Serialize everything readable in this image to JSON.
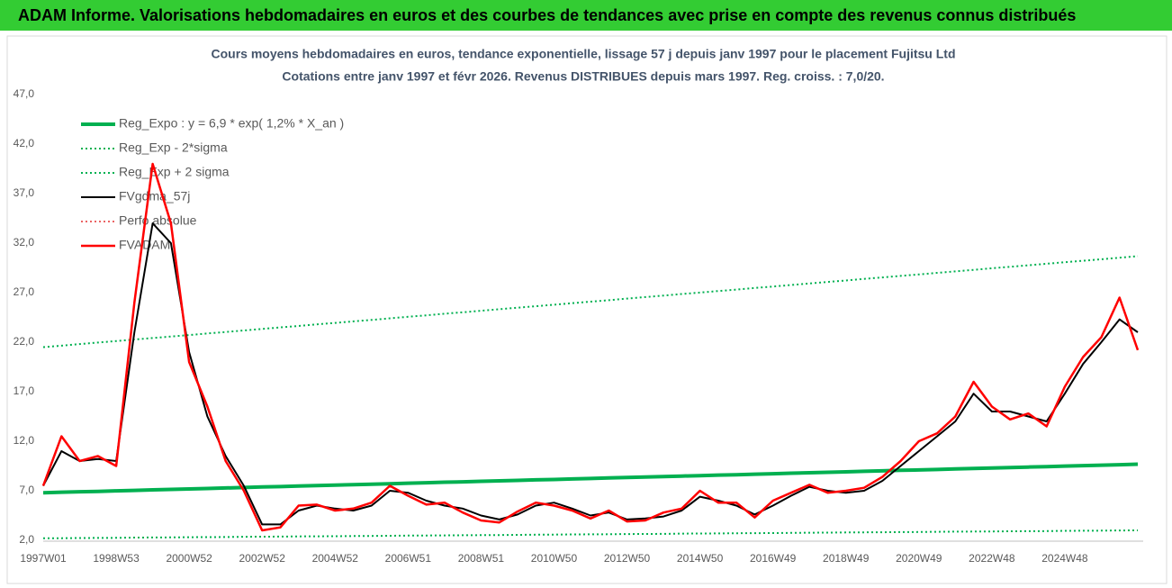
{
  "header": {
    "title": "ADAM Informe. Valorisations hebdomadaires en euros et des courbes de tendances avec prise en compte des revenus connus distribués"
  },
  "chart_data": {
    "type": "line",
    "title": "Cours moyens hebdomadaires en euros, tendance exponentielle, lissage 57 j depuis janv 1997 pour le placement Fujitsu Ltd",
    "subtitle": "Cotations entre janv 1997 et févr 2026. Revenus DISTRIBUES depuis mars 1997. Reg. croiss. : 7,0/20.",
    "categories": [
      "1997W01",
      null,
      null,
      null,
      "1998W53",
      null,
      null,
      null,
      "2000W52",
      null,
      null,
      null,
      "2002W52",
      null,
      null,
      null,
      "2004W52",
      null,
      null,
      null,
      "2006W51",
      null,
      null,
      null,
      "2008W51",
      null,
      null,
      null,
      "2010W50",
      null,
      null,
      null,
      "2012W50",
      null,
      null,
      null,
      "2014W50",
      null,
      null,
      null,
      "2016W49",
      null,
      null,
      null,
      "2018W49",
      null,
      null,
      null,
      "2020W49",
      null,
      null,
      null,
      "2022W48",
      null,
      null,
      null,
      "2024W48",
      null,
      null,
      null,
      null
    ],
    "ylim": [
      2,
      47
    ],
    "yticks": [
      {
        "value": 2,
        "label": "2,0"
      },
      {
        "value": 7,
        "label": "7,0"
      },
      {
        "value": 12,
        "label": "12,0"
      },
      {
        "value": 17,
        "label": "17,0"
      },
      {
        "value": 22,
        "label": "22,0"
      },
      {
        "value": 27,
        "label": "27,0"
      },
      {
        "value": 32,
        "label": "32,0"
      },
      {
        "value": 37,
        "label": "37,0"
      },
      {
        "value": 42,
        "label": "42,0"
      },
      {
        "value": 47,
        "label": "47,0"
      }
    ],
    "grid": false,
    "legend": "top-left",
    "series": [
      {
        "name": "Reg_Expo : y = 6,9 * exp( 1,2% *  X_an )",
        "color": "#00b050",
        "style": "solid",
        "width": 4,
        "values": [
          6.8,
          6.85,
          6.9,
          6.94,
          6.99,
          7.04,
          7.09,
          7.14,
          7.18,
          7.23,
          7.28,
          7.33,
          7.38,
          7.42,
          7.47,
          7.52,
          7.57,
          7.62,
          7.66,
          7.71,
          7.76,
          7.81,
          7.86,
          7.9,
          7.95,
          8.0,
          8.05,
          8.1,
          8.14,
          8.19,
          8.24,
          8.29,
          8.34,
          8.38,
          8.43,
          8.48,
          8.53,
          8.58,
          8.62,
          8.67,
          8.72,
          8.77,
          8.82,
          8.86,
          8.91,
          8.96,
          9.01,
          9.06,
          9.1,
          9.15,
          9.2,
          9.25,
          9.3,
          9.34,
          9.39,
          9.44,
          9.49,
          9.54,
          9.58,
          9.63,
          9.68
        ]
      },
      {
        "name": "Reg_Exp - 2*sigma",
        "color": "#00b050",
        "style": "dotted",
        "width": 2,
        "values": [
          2.2,
          2.21,
          2.23,
          2.24,
          2.25,
          2.27,
          2.28,
          2.29,
          2.31,
          2.32,
          2.33,
          2.35,
          2.36,
          2.37,
          2.39,
          2.4,
          2.41,
          2.43,
          2.44,
          2.45,
          2.47,
          2.48,
          2.49,
          2.51,
          2.52,
          2.53,
          2.55,
          2.56,
          2.57,
          2.59,
          2.6,
          2.61,
          2.63,
          2.64,
          2.65,
          2.67,
          2.68,
          2.69,
          2.71,
          2.72,
          2.73,
          2.75,
          2.76,
          2.77,
          2.79,
          2.8,
          2.81,
          2.83,
          2.84,
          2.85,
          2.87,
          2.88,
          2.89,
          2.91,
          2.92,
          2.93,
          2.95,
          2.96,
          2.97,
          2.99,
          3.0
        ]
      },
      {
        "name": "Reg_Exp + 2 sigma",
        "color": "#00b050",
        "style": "dotted",
        "width": 2,
        "values": [
          21.5,
          21.65,
          21.81,
          21.96,
          22.11,
          22.27,
          22.42,
          22.57,
          22.72,
          22.88,
          23.03,
          23.18,
          23.34,
          23.49,
          23.64,
          23.8,
          23.95,
          24.1,
          24.25,
          24.41,
          24.56,
          24.71,
          24.87,
          25.02,
          25.17,
          25.33,
          25.48,
          25.63,
          25.78,
          25.94,
          26.09,
          26.24,
          26.4,
          26.55,
          26.7,
          26.86,
          27.01,
          27.16,
          27.31,
          27.47,
          27.62,
          27.77,
          27.93,
          28.08,
          28.23,
          28.39,
          28.54,
          28.69,
          28.84,
          29.0,
          29.15,
          29.3,
          29.46,
          29.61,
          29.76,
          29.92,
          30.07,
          30.22,
          30.37,
          30.53,
          30.68
        ]
      },
      {
        "name": "FVgdma_57j",
        "color": "#000000",
        "style": "solid",
        "width": 2,
        "values": [
          7.5,
          11,
          10,
          10.2,
          10,
          23,
          34,
          32,
          21,
          14.5,
          10.5,
          7.5,
          3.6,
          3.6,
          5,
          5.5,
          5.2,
          5,
          5.5,
          7,
          6.8,
          6,
          5.5,
          5.2,
          4.5,
          4.1,
          4.6,
          5.5,
          5.8,
          5.2,
          4.5,
          4.8,
          4.1,
          4.2,
          4.4,
          5,
          6.4,
          6,
          5.5,
          4.6,
          5.5,
          6.5,
          7.4,
          7,
          6.8,
          7,
          8,
          9.5,
          11,
          12.5,
          14,
          16.8,
          15,
          15,
          14.5,
          14,
          16.8,
          19.8,
          22,
          24.3,
          23
        ]
      },
      {
        "name": "Perfo absolue",
        "color": "#e53030",
        "style": "dotted",
        "width": 1.5
      },
      {
        "name": "FVADAM",
        "color": "#ff0000",
        "style": "solid",
        "width": 2.5,
        "values": [
          7.5,
          12.5,
          10,
          10.5,
          9.5,
          26,
          40,
          34,
          20,
          15.5,
          10,
          7,
          3,
          3.3,
          5.5,
          5.6,
          5,
          5.2,
          5.8,
          7.5,
          6.5,
          5.6,
          5.8,
          4.8,
          4,
          3.8,
          4.9,
          5.8,
          5.5,
          5,
          4.2,
          5,
          3.9,
          4,
          4.8,
          5.2,
          7,
          5.8,
          5.8,
          4.3,
          6,
          6.8,
          7.6,
          6.8,
          7,
          7.3,
          8.4,
          10,
          12,
          12.8,
          14.5,
          18,
          15.5,
          14.2,
          14.8,
          13.5,
          17.5,
          20.5,
          22.5,
          26.5,
          21.2
        ]
      }
    ]
  }
}
